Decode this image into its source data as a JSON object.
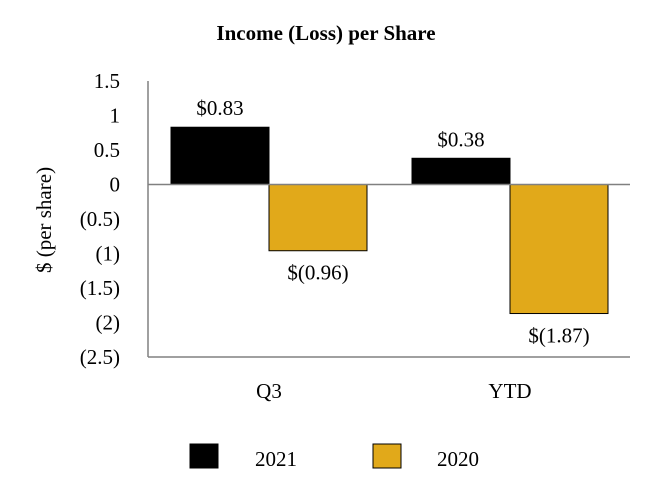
{
  "chart_data": {
    "type": "bar",
    "title": "Income (Loss) per Share",
    "xlabel": "",
    "ylabel": "$ (per share)",
    "categories": [
      "Q3",
      "YTD"
    ],
    "series": [
      {
        "name": "2021",
        "color": "#000000",
        "values": [
          0.83,
          0.38
        ],
        "labels": [
          "$0.83",
          "$0.38"
        ]
      },
      {
        "name": "2020",
        "color": "#E1A91A",
        "values": [
          -0.96,
          -1.87
        ],
        "labels": [
          "$(0.96)",
          "$(1.87)"
        ]
      }
    ],
    "ylim": [
      -2.5,
      1.5
    ],
    "yticks": [
      1.5,
      1,
      0.5,
      0,
      -0.5,
      -1,
      -1.5,
      -2,
      -2.5
    ],
    "ytick_labels": [
      "1.5",
      "1",
      "0.5",
      "0",
      "(0.5)",
      "(1)",
      "(1.5)",
      "(2)",
      "(2.5)"
    ],
    "legend_position": "bottom",
    "grid": false
  }
}
